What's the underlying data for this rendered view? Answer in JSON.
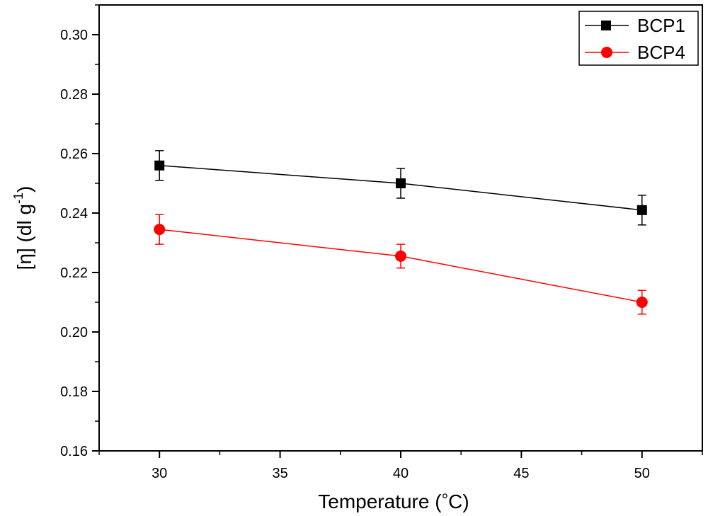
{
  "chart_data": {
    "type": "line",
    "title": "",
    "xlabel": "Temperature (°C)",
    "ylabel": "[η] (dl g-1)",
    "ylabel_parts": {
      "eta": "[η]",
      "unit": "(dl g",
      "superscript": "-1",
      "close": ")"
    },
    "xlabel_parts": {
      "prefix": "Temperature (",
      "degree": "°",
      "suffix": "C)"
    },
    "xlim": [
      27.5,
      52.5
    ],
    "ylim": [
      0.16,
      0.31
    ],
    "xticks": [
      30,
      35,
      40,
      45,
      50
    ],
    "xtick_labels": [
      "30",
      "35",
      "40",
      "45",
      "50"
    ],
    "yticks": [
      0.16,
      0.18,
      0.2,
      0.22,
      0.24,
      0.26,
      0.28,
      0.3
    ],
    "ytick_labels": [
      "0.16",
      "0.18",
      "0.20",
      "0.22",
      "0.24",
      "0.26",
      "0.28",
      "0.30"
    ],
    "x": [
      30,
      40,
      50
    ],
    "legend_position": "top-right",
    "series": [
      {
        "name": "BCP1",
        "color": "#000000",
        "marker": "square",
        "values": [
          0.256,
          0.25,
          0.241
        ],
        "errors": [
          0.005,
          0.005,
          0.005
        ]
      },
      {
        "name": "BCP4",
        "color": "#ff0000",
        "marker": "circle",
        "values": [
          0.2345,
          0.2255,
          0.21
        ],
        "errors": [
          0.005,
          0.004,
          0.004
        ]
      }
    ]
  }
}
